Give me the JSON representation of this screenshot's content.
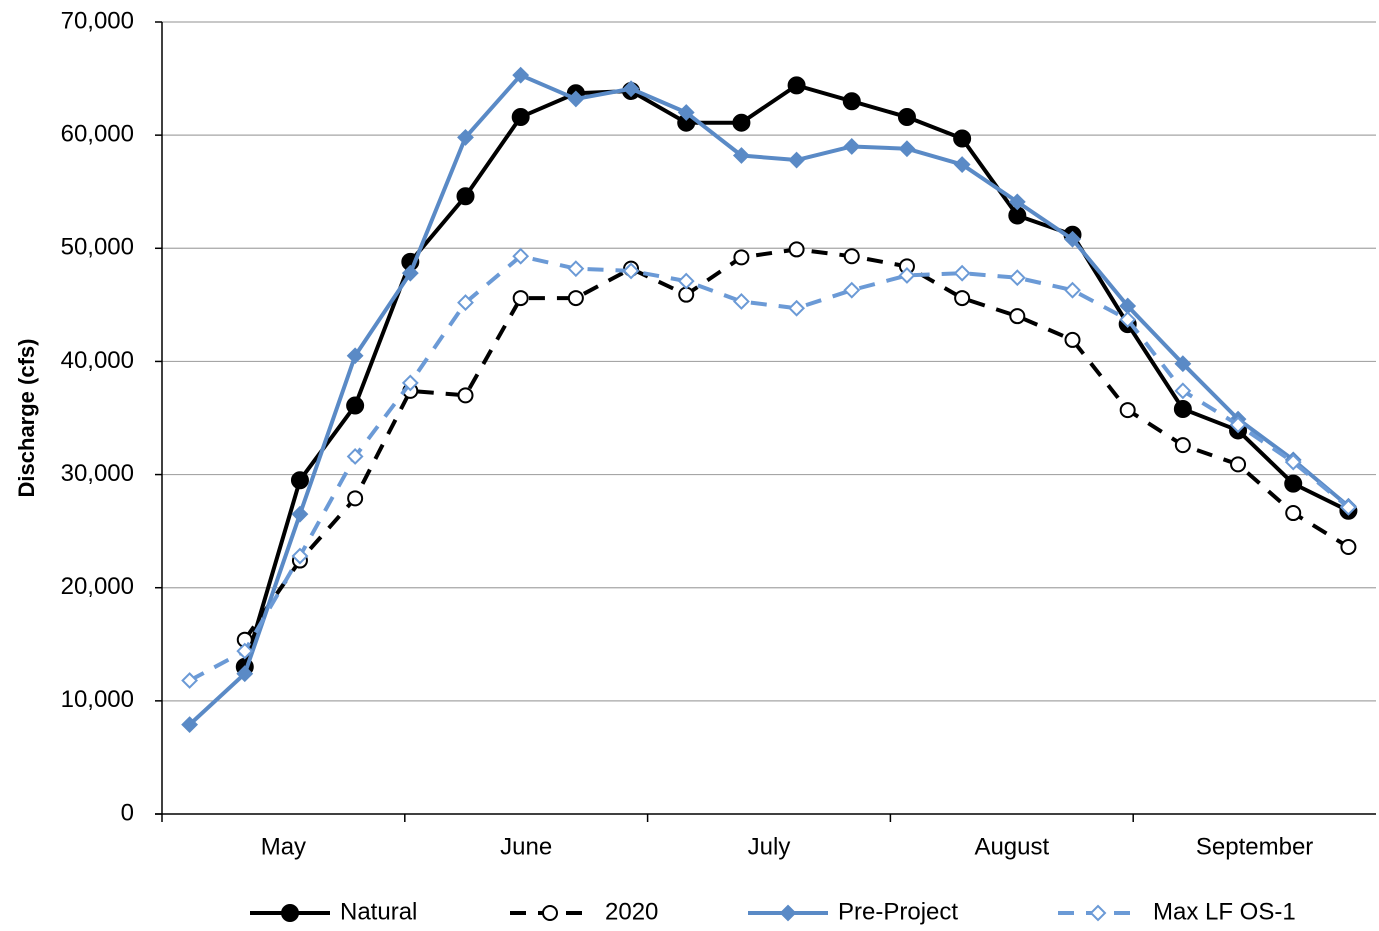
{
  "chart_data": {
    "type": "line",
    "y_label": "Discharge (cfs)",
    "categories": [
      null,
      null,
      null,
      null,
      null,
      null,
      null,
      null,
      null,
      null,
      null,
      null,
      null,
      null,
      null,
      null,
      null,
      null,
      null,
      null,
      null,
      null
    ],
    "x_groups": [
      "May",
      "June",
      "July",
      "August",
      "September"
    ],
    "ylim": [
      0,
      70000
    ],
    "yticks": [
      0,
      {
        "value": 10000,
        "label": "10,000"
      },
      {
        "value": 20000,
        "label": "20,000"
      },
      {
        "value": 30000,
        "label": "30,000"
      },
      {
        "value": 40000,
        "label": "40,000"
      },
      {
        "value": 50000,
        "label": "50,000"
      },
      {
        "value": 60000,
        "label": "60,000"
      },
      {
        "value": 70000,
        "label": "70,000"
      }
    ],
    "grid": true,
    "legend": "bottom",
    "series": [
      {
        "name": "Natural",
        "color": "#000000",
        "dashed": false,
        "marker": "circle",
        "filled": true,
        "values": [
          null,
          13000,
          29500,
          36100,
          48800,
          54600,
          61600,
          63700,
          63900,
          61100,
          61100,
          64400,
          63000,
          61600,
          59700,
          52900,
          51200,
          43300,
          35800,
          33900,
          29200,
          26800
        ]
      },
      {
        "name": "2020",
        "color": "#000000",
        "dashed": true,
        "marker": "circle",
        "filled": false,
        "values": [
          null,
          15400,
          22400,
          27900,
          37400,
          37000,
          45600,
          45600,
          48200,
          45900,
          49200,
          49900,
          49300,
          48400,
          45600,
          44000,
          41900,
          35700,
          32600,
          30900,
          26600,
          23600
        ]
      },
      {
        "name": "Pre-Project",
        "color": "#5a8ac6",
        "dashed": false,
        "marker": "diamond",
        "filled": true,
        "values": [
          7900,
          12400,
          26500,
          40500,
          47800,
          59800,
          65300,
          63200,
          64100,
          62000,
          58200,
          57800,
          59000,
          58800,
          57400,
          54100,
          50800,
          44900,
          39800,
          34900,
          31300,
          27200
        ]
      },
      {
        "name": "Max LF OS-1",
        "color": "#6b9ad6",
        "dashed": true,
        "marker": "diamond",
        "filled": false,
        "values": [
          11800,
          14400,
          22800,
          31600,
          38100,
          45200,
          49300,
          48200,
          48000,
          47100,
          45300,
          44700,
          46300,
          47600,
          47800,
          47400,
          46300,
          43700,
          37400,
          34400,
          31100,
          27100
        ]
      }
    ]
  }
}
